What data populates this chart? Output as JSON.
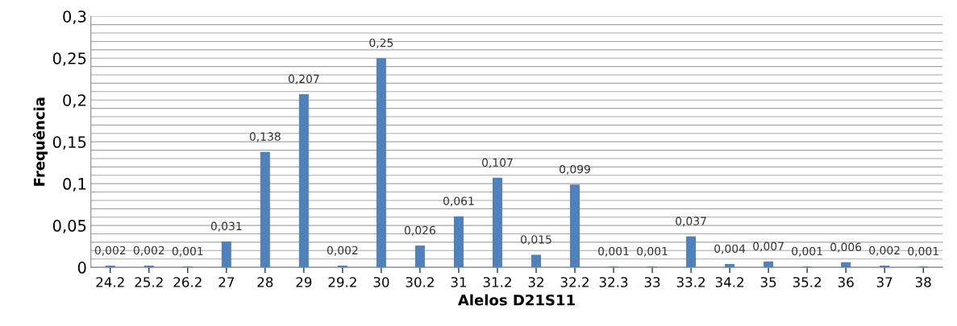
{
  "chart_data": {
    "type": "bar",
    "xlabel": "Alelos D21S11",
    "ylabel": "Frequência",
    "categories": [
      "24.2",
      "25.2",
      "26.2",
      "27",
      "28",
      "29",
      "29.2",
      "30",
      "30.2",
      "31",
      "31.2",
      "32",
      "32.2",
      "32.3",
      "33",
      "33.2",
      "34.2",
      "35",
      "35.2",
      "36",
      "37",
      "38"
    ],
    "values": [
      0.002,
      0.002,
      0.001,
      0.031,
      0.138,
      0.207,
      0.002,
      0.25,
      0.026,
      0.061,
      0.107,
      0.015,
      0.099,
      0.001,
      0.001,
      0.037,
      0.004,
      0.007,
      0.001,
      0.006,
      0.002,
      0.001
    ],
    "value_labels": [
      "0,002",
      "0,002",
      "0,001",
      "0,031",
      "0,138",
      "0,207",
      "0,002",
      "0,25",
      "0,026",
      "0,061",
      "0,107",
      "0,015",
      "0,099",
      "0,001",
      "0,001",
      "0,037",
      "0,004",
      "0,007",
      "0,001",
      "0,006",
      "0,002",
      "0,001"
    ],
    "color": "#4f81bd",
    "ylim": [
      0,
      0.3
    ],
    "yticks": [
      {
        "value": 0,
        "label": "0"
      },
      {
        "value": 0.01,
        "label": null
      },
      {
        "value": 0.02,
        "label": null
      },
      {
        "value": 0.03,
        "label": null
      },
      {
        "value": 0.04,
        "label": null
      },
      {
        "value": 0.05,
        "label": "0,05"
      },
      {
        "value": 0.06,
        "label": null
      },
      {
        "value": 0.07,
        "label": null
      },
      {
        "value": 0.08,
        "label": null
      },
      {
        "value": 0.09,
        "label": null
      },
      {
        "value": 0.1,
        "label": "0,1"
      },
      {
        "value": 0.11,
        "label": null
      },
      {
        "value": 0.12,
        "label": null
      },
      {
        "value": 0.13,
        "label": null
      },
      {
        "value": 0.14,
        "label": null
      },
      {
        "value": 0.15,
        "label": "0,15"
      },
      {
        "value": 0.16,
        "label": null
      },
      {
        "value": 0.17,
        "label": null
      },
      {
        "value": 0.18,
        "label": null
      },
      {
        "value": 0.19,
        "label": null
      },
      {
        "value": 0.2,
        "label": "0,2"
      },
      {
        "value": 0.21,
        "label": null
      },
      {
        "value": 0.22,
        "label": null
      },
      {
        "value": 0.23,
        "label": null
      },
      {
        "value": 0.24,
        "label": null
      },
      {
        "value": 0.25,
        "label": "0,25"
      },
      {
        "value": 0.26,
        "label": null
      },
      {
        "value": 0.27,
        "label": null
      },
      {
        "value": 0.28,
        "label": null
      },
      {
        "value": 0.29,
        "label": null
      },
      {
        "value": 0.3,
        "label": "0,3"
      }
    ],
    "grid": "y"
  }
}
